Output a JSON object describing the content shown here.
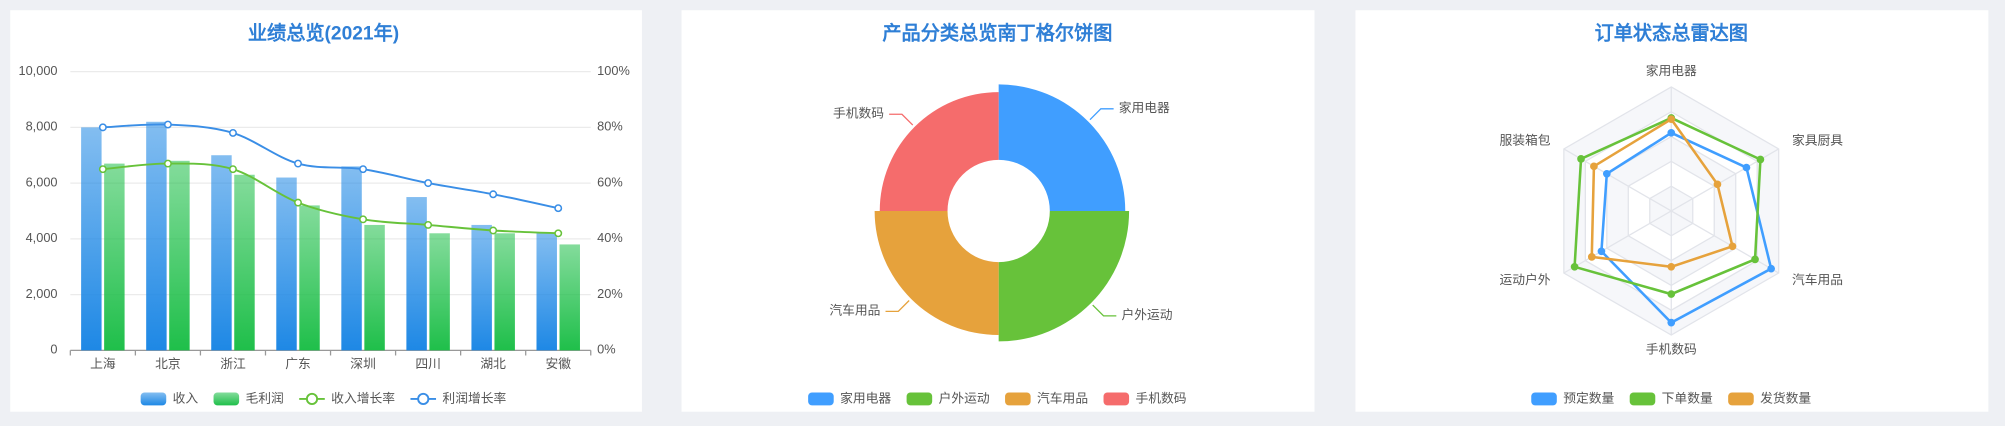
{
  "chart_data": [
    {
      "type": "bar",
      "title": "业绩总览(2021年)",
      "categories": [
        "上海",
        "北京",
        "浙江",
        "广东",
        "深圳",
        "四川",
        "湖北",
        "安徽"
      ],
      "series": [
        {
          "name": "收入",
          "color": "#1e88e5",
          "values": [
            8000,
            8200,
            7000,
            6200,
            6600,
            5500,
            4500,
            4200
          ]
        },
        {
          "name": "毛利润",
          "color": "#1fbf4a",
          "values": [
            6700,
            6800,
            6300,
            5200,
            4500,
            4200,
            4200,
            3800
          ]
        },
        {
          "name": "收入增长率",
          "color": "#67c23a",
          "axis": "y2",
          "values": [
            65,
            67,
            65,
            53,
            47,
            45,
            43,
            42
          ]
        },
        {
          "name": "利润增长率",
          "color": "#3a8ee6",
          "axis": "y2",
          "values": [
            80,
            81,
            78,
            67,
            65,
            60,
            56,
            51
          ]
        }
      ],
      "ylim": [
        0,
        10000
      ],
      "yticks": [
        0,
        {
          "value": 2000,
          "label": "2,000"
        },
        {
          "value": 4000,
          "label": "4,000"
        },
        {
          "value": 6000,
          "label": "6,000"
        },
        {
          "value": 8000,
          "label": "8,000"
        },
        {
          "value": 10000,
          "label": "10,000"
        }
      ],
      "y2lim": [
        0,
        100
      ],
      "y2ticks": [
        {
          "value": 0,
          "label": "0%"
        },
        {
          "value": 20,
          "label": "20%"
        },
        {
          "value": 40,
          "label": "40%"
        },
        {
          "value": 60,
          "label": "60%"
        },
        {
          "value": 80,
          "label": "80%"
        },
        {
          "value": 100,
          "label": "100%"
        }
      ],
      "grid": true
    },
    {
      "type": "pie",
      "title": "产品分类总览南丁格尔饼图",
      "rose": true,
      "categories": [
        "家用电器",
        "户外运动",
        "汽车用品",
        "手机数码"
      ],
      "values": [
        99,
        102,
        97,
        93
      ],
      "colors": [
        "#409eff",
        "#67c23a",
        "#e6a23c",
        "#f56c6c"
      ]
    },
    {
      "type": "radar",
      "title": "订单状态总雷达图",
      "indicators": [
        "家用电器",
        "家具厨具",
        "汽车用品",
        "手机数码",
        "运动户外",
        "服装箱包"
      ],
      "rlim": [
        0,
        100
      ],
      "series": [
        {
          "name": "预定数量",
          "color": "#409eff",
          "values": [
            63,
            70,
            93,
            90,
            65,
            60
          ]
        },
        {
          "name": "下单数量",
          "color": "#67c23a",
          "values": [
            75,
            83,
            78,
            67,
            90,
            84
          ]
        },
        {
          "name": "发货数量",
          "color": "#e6a23c",
          "values": [
            74,
            43,
            57,
            45,
            74,
            72
          ]
        }
      ]
    }
  ]
}
